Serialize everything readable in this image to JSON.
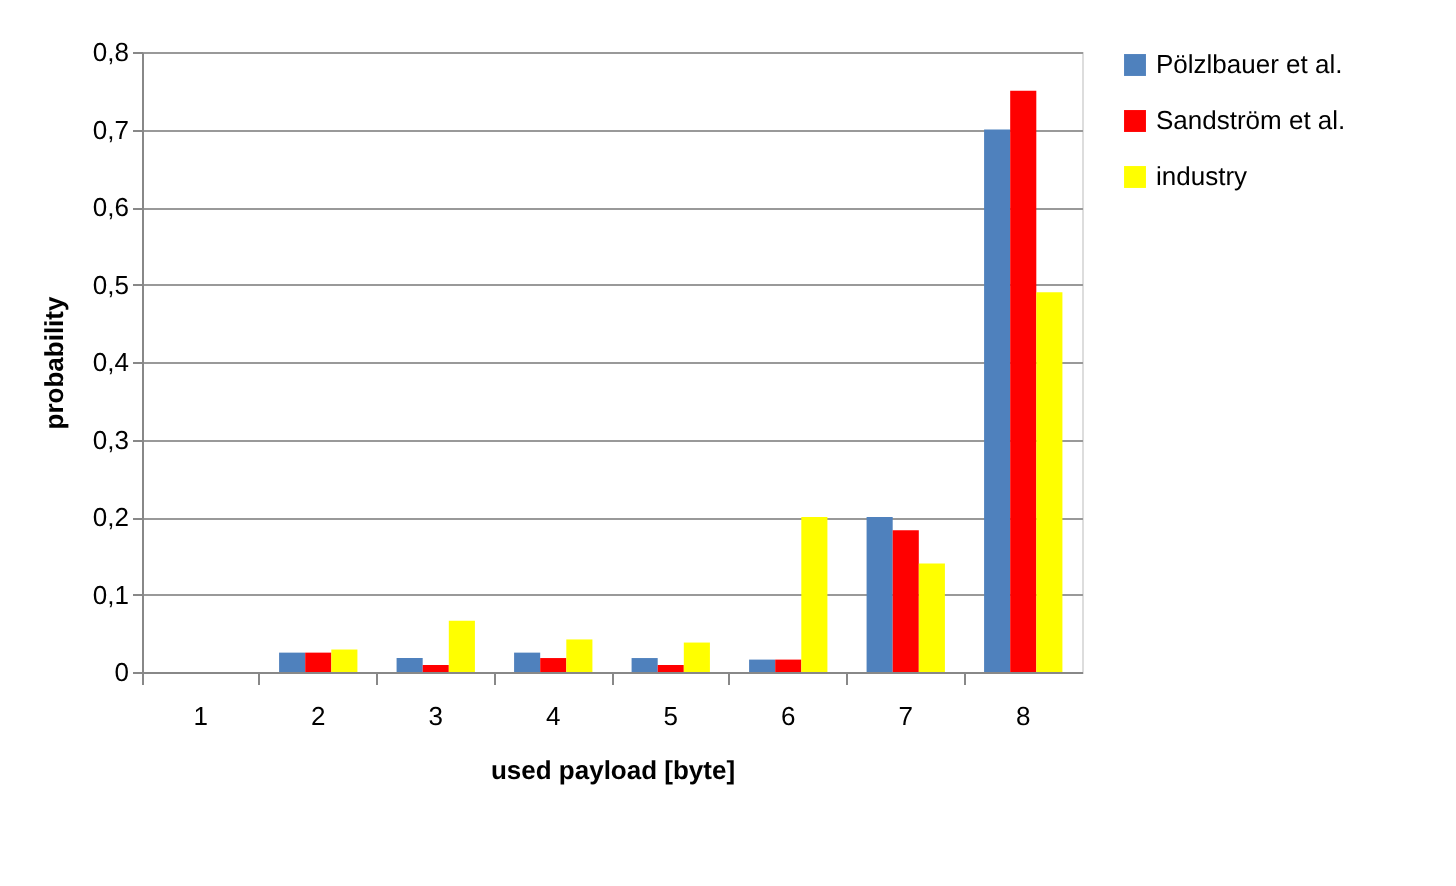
{
  "chart_data": {
    "type": "bar",
    "xlabel": "used payload  [byte]",
    "ylabel": "probability",
    "categories": [
      "1",
      "2",
      "3",
      "4",
      "5",
      "6",
      "7",
      "8"
    ],
    "series": [
      {
        "name": "Pölzlbauer et al.",
        "color": "#4f81bd",
        "values": [
          0,
          0.025,
          0.018,
          0.025,
          0.018,
          0.016,
          0.2,
          0.7
        ]
      },
      {
        "name": "Sandström et al.",
        "color": "#ff0000",
        "values": [
          0,
          0.025,
          0.009,
          0.018,
          0.009,
          0.016,
          0.183,
          0.75
        ]
      },
      {
        "name": "industry",
        "color": "#ffff00",
        "values": [
          0,
          0.029,
          0.066,
          0.042,
          0.038,
          0.2,
          0.14,
          0.49
        ]
      }
    ],
    "ylim": [
      0,
      0.8
    ],
    "yticks": [
      0,
      {
        "value": 0.1,
        "label": "0,1"
      },
      {
        "value": 0.2,
        "label": "0,2"
      },
      {
        "value": 0.3,
        "label": "0,3"
      },
      {
        "value": 0.4,
        "label": "0,4"
      },
      {
        "value": 0.5,
        "label": "0,5"
      },
      {
        "value": 0.6,
        "label": "0,6"
      },
      {
        "value": 0.7,
        "label": "0,7"
      },
      {
        "value": 0.8,
        "label": "0,8"
      }
    ],
    "grid": "y",
    "legend": "right"
  }
}
